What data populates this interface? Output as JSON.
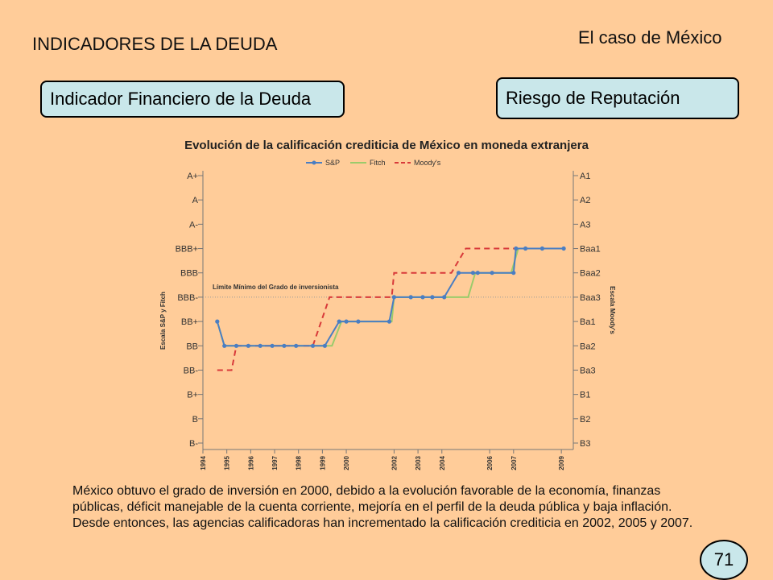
{
  "header": {
    "section_title": "INDICADORES DE LA DEUDA",
    "case_title": "El caso de México"
  },
  "tabs": {
    "left_label": "Indicador Financiero de la Deuda",
    "right_label": "Riesgo de Reputación"
  },
  "chart_data": {
    "type": "line",
    "title": "Evolución de la calificación crediticia de México en moneda extranjera",
    "legend": [
      "S&P",
      "Fitch",
      "Moody's"
    ],
    "legend_position": "top-center",
    "left_axis_label": "Escala S&P y Fitch",
    "right_axis_label": "Escala Moody's",
    "left_ticks": [
      "A+",
      "A",
      "A-",
      "BBB+",
      "BBB",
      "BBB-",
      "BB+",
      "BB",
      "BB-",
      "B+",
      "B",
      "B-"
    ],
    "right_ticks": [
      "A1",
      "A2",
      "A3",
      "Baa1",
      "Baa2",
      "Baa3",
      "Ba1",
      "Ba2",
      "Ba3",
      "B1",
      "B2",
      "B3"
    ],
    "x_ticks": [
      "1994",
      "1995",
      "1996",
      "1997",
      "1998",
      "1999",
      "2000",
      "2002",
      "2003",
      "2004",
      "2006",
      "2007",
      "2009"
    ],
    "threshold_label": "Límite Mínimo del Grado de inversionista",
    "threshold_rating": "BBB-",
    "xlim": [
      1994,
      2009.5
    ],
    "colors": {
      "sp": "#4A7EC2",
      "fitch": "#9BCB6B",
      "moodys": "#D83A3A",
      "threshold": "#999999"
    },
    "series": [
      {
        "name": "S&P",
        "points": [
          [
            1994.6,
            "BB+"
          ],
          [
            1994.9,
            "BB"
          ],
          [
            1995.4,
            "BB"
          ],
          [
            1995.9,
            "BB"
          ],
          [
            1996.4,
            "BB"
          ],
          [
            1996.9,
            "BB"
          ],
          [
            1997.4,
            "BB"
          ],
          [
            1997.9,
            "BB"
          ],
          [
            1998.6,
            "BB"
          ],
          [
            1999.1,
            "BB"
          ],
          [
            1999.7,
            "BB+"
          ],
          [
            2000.0,
            "BB+"
          ],
          [
            2000.5,
            "BB+"
          ],
          [
            2001.8,
            "BB+"
          ],
          [
            2002.0,
            "BBB-"
          ],
          [
            2002.7,
            "BBB-"
          ],
          [
            2003.2,
            "BBB-"
          ],
          [
            2003.6,
            "BBB-"
          ],
          [
            2004.1,
            "BBB-"
          ],
          [
            2004.7,
            "BBB"
          ],
          [
            2005.3,
            "BBB"
          ],
          [
            2005.5,
            "BBB"
          ],
          [
            2006.1,
            "BBB"
          ],
          [
            2007.0,
            "BBB"
          ],
          [
            2007.1,
            "BBB+"
          ],
          [
            2007.5,
            "BBB+"
          ],
          [
            2008.2,
            "BBB+"
          ],
          [
            2009.1,
            "BBB+"
          ]
        ]
      },
      {
        "name": "Fitch",
        "points": [
          [
            1994.6,
            "BB+"
          ],
          [
            1994.9,
            "BB"
          ],
          [
            1999.4,
            "BB"
          ],
          [
            1999.8,
            "BB+"
          ],
          [
            2001.9,
            "BB+"
          ],
          [
            2002.0,
            "BBB-"
          ],
          [
            2005.1,
            "BBB-"
          ],
          [
            2005.4,
            "BBB"
          ],
          [
            2006.9,
            "BBB"
          ],
          [
            2007.2,
            "BBB+"
          ],
          [
            2009.1,
            "BBB+"
          ]
        ]
      },
      {
        "name": "Moody's",
        "points": [
          [
            1994.6,
            "Ba3"
          ],
          [
            1995.2,
            "Ba3"
          ],
          [
            1995.4,
            "Ba2"
          ],
          [
            1998.6,
            "Ba2"
          ],
          [
            1999.3,
            "Baa3"
          ],
          [
            1999.9,
            "Baa3"
          ],
          [
            2001.9,
            "Baa3"
          ],
          [
            2002.0,
            "Baa2"
          ],
          [
            2004.4,
            "Baa2"
          ],
          [
            2005.0,
            "Baa1"
          ],
          [
            2009.1,
            "Baa1"
          ]
        ]
      }
    ]
  },
  "text": {
    "paragraph": "México obtuvo el grado de inversión en 2000, debido a la evolución favorable de la economía, finanzas públicas, déficit manejable de la cuenta corriente, mejoría en el perfil de la deuda pública y baja inflación. Desde entonces, las agencias calificadoras han incrementado la calificación crediticia en 2002, 2005 y 2007."
  },
  "page": {
    "number": "71"
  }
}
